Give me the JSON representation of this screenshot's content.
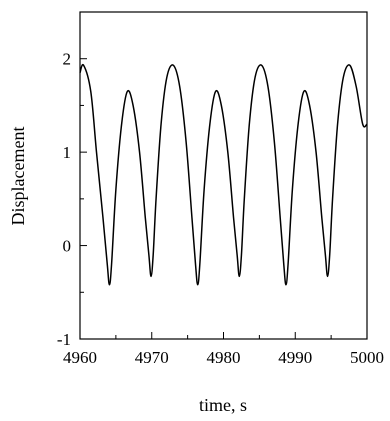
{
  "chart_data": {
    "type": "line",
    "title": "",
    "xlabel": "time, s",
    "ylabel": "Displacement",
    "xlim": [
      4960,
      5000
    ],
    "ylim": [
      -1,
      2.5
    ],
    "xticks": [
      4960,
      4970,
      4980,
      4990,
      5000
    ],
    "yticks": [
      -1,
      0,
      1,
      2
    ],
    "x_tick_labels": [
      "4960",
      "4970",
      "4980",
      "4990",
      "5000"
    ],
    "y_tick_labels": [
      "-1",
      "0",
      "1",
      "2"
    ],
    "grid": false,
    "legend": "none",
    "line_color": "#000000",
    "series": [
      {
        "x": [
          4960.0,
          4960.5,
          4961.5,
          4962.3,
          4963.2,
          4963.8,
          4964.1,
          4964.4,
          4965.0,
          4965.8,
          4966.6,
          4967.4,
          4968.3,
          4969.1,
          4969.6,
          4969.9,
          4970.2,
          4970.6,
          4971.3,
          4972.1,
          4973.0,
          4973.9,
          4974.8,
          4975.6,
          4976.1,
          4976.4,
          4976.7,
          4977.3,
          4978.1,
          4978.9,
          4979.7,
          4980.6,
          4981.4,
          4981.9,
          4982.2,
          4982.5,
          4982.9,
          4983.6,
          4984.4,
          4985.3,
          4986.2,
          4987.1,
          4987.9,
          4988.4,
          4988.7,
          4989.0,
          4989.6,
          4990.4,
          4991.2,
          4992.0,
          4992.9,
          4993.7,
          4994.2,
          4994.5,
          4994.8,
          4995.2,
          4995.9,
          4996.7,
          4997.6,
          4998.5,
          4999.4,
          5000.0
        ],
        "y": [
          1.85,
          1.93,
          1.65,
          1.0,
          0.3,
          -0.2,
          -0.42,
          -0.2,
          0.6,
          1.3,
          1.65,
          1.5,
          1.0,
          0.3,
          -0.1,
          -0.33,
          -0.1,
          0.5,
          1.3,
          1.8,
          1.93,
          1.7,
          1.1,
          0.3,
          -0.2,
          -0.42,
          -0.2,
          0.6,
          1.3,
          1.65,
          1.5,
          1.0,
          0.3,
          -0.1,
          -0.33,
          -0.1,
          0.5,
          1.3,
          1.8,
          1.93,
          1.7,
          1.1,
          0.3,
          -0.2,
          -0.42,
          -0.2,
          0.6,
          1.3,
          1.65,
          1.5,
          1.0,
          0.3,
          -0.1,
          -0.33,
          -0.1,
          0.5,
          1.3,
          1.8,
          1.93,
          1.7,
          1.3,
          1.3
        ]
      }
    ]
  }
}
